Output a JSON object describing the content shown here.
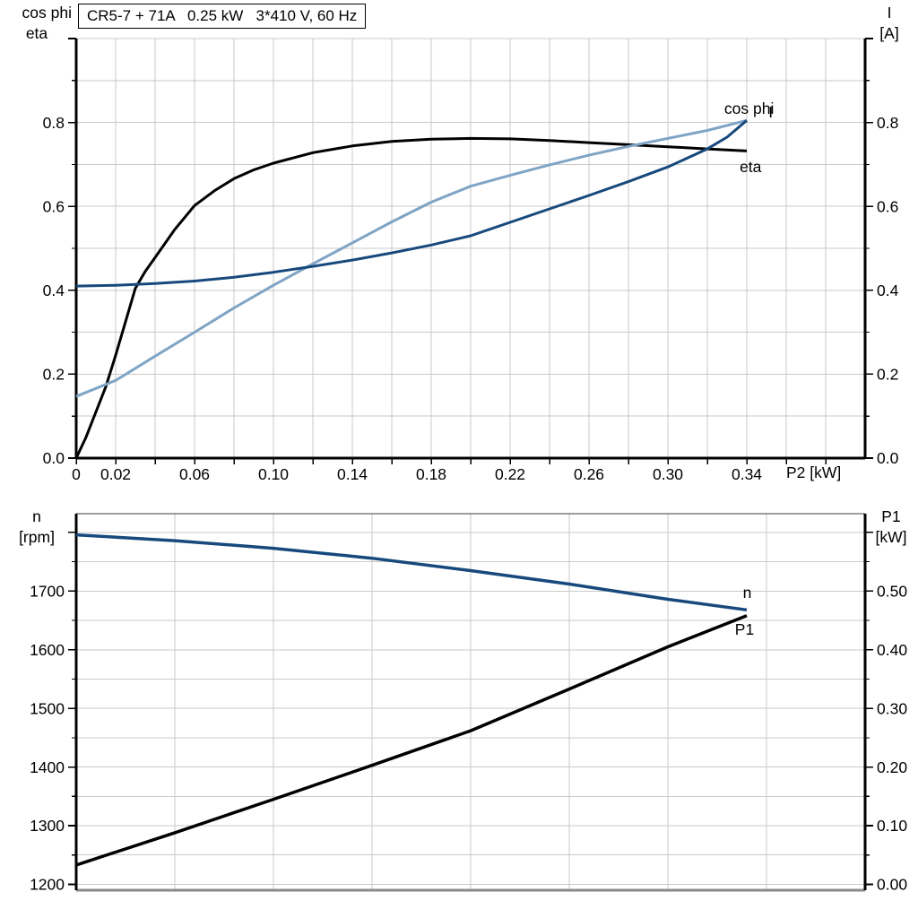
{
  "title_box": {
    "text": "CR5-7 + 71A   0.25 kW   3*410 V, 60 Hz"
  },
  "axis_headers": {
    "top_left": {
      "lines": [
        "cos phi",
        "eta"
      ]
    },
    "top_right": {
      "lines": [
        "I",
        "[A]"
      ]
    },
    "bottom_left": {
      "lines": [
        "n",
        "[rpm]"
      ]
    },
    "bottom_right": {
      "lines": [
        "P1",
        "[kW]"
      ]
    },
    "x_axis_title": "P2 [kW]"
  },
  "colors": {
    "black": "#000000",
    "dark_blue": "#17497c",
    "light_blue": "#7fa4c5",
    "grid": "#c9c9c9",
    "frame_dark": "#3c3c3c",
    "frame_gray": "#8a8a8a"
  },
  "chart_data": [
    {
      "id": "top",
      "type": "line",
      "title": "CR5-7 + 71A   0.25 kW   3*410 V, 60 Hz",
      "xlabel": "P2 [kW]",
      "ylabel_left": "cos phi / eta",
      "ylabel_right": "I [A]",
      "xlim": [
        0,
        0.4
      ],
      "grid": {
        "x_step": 0.02,
        "y_step": 0.1
      },
      "x_ticks": {
        "step": 0.02
      },
      "x_labeled_ticks": [
        {
          "v": 0,
          "t": "0"
        },
        {
          "v": 0.02,
          "t": "0.02"
        },
        {
          "v": 0.06,
          "t": "0.06"
        },
        {
          "v": 0.1,
          "t": "0.10"
        },
        {
          "v": 0.14,
          "t": "0.14"
        },
        {
          "v": 0.18,
          "t": "0.18"
        },
        {
          "v": 0.22,
          "t": "0.22"
        },
        {
          "v": 0.26,
          "t": "0.26"
        },
        {
          "v": 0.3,
          "t": "0.30"
        },
        {
          "v": 0.34,
          "t": "0.34"
        }
      ],
      "y_left": {
        "lim": [
          0,
          1.0
        ],
        "minor": 0.1,
        "major": 0.2,
        "labels": [
          {
            "v": 0.0,
            "t": "0.0"
          },
          {
            "v": 0.2,
            "t": "0.2"
          },
          {
            "v": 0.4,
            "t": "0.4"
          },
          {
            "v": 0.6,
            "t": "0.6"
          },
          {
            "v": 0.8,
            "t": "0.8"
          }
        ]
      },
      "y_right": {
        "lim": [
          0,
          1.0
        ],
        "minor": 0.1,
        "major": 0.2,
        "labels": [
          {
            "v": 0.0,
            "t": "0.0"
          },
          {
            "v": 0.2,
            "t": "0.2"
          },
          {
            "v": 0.4,
            "t": "0.4"
          },
          {
            "v": 0.6,
            "t": "0.6"
          },
          {
            "v": 0.8,
            "t": "0.8"
          }
        ]
      },
      "frame": {
        "top": "grid",
        "bottom_axis": true
      },
      "series": [
        {
          "name": "eta",
          "axis": "left",
          "color_key": "black",
          "width": 3,
          "points": [
            [
              0,
              0
            ],
            [
              0.005,
              0.05
            ],
            [
              0.01,
              0.11
            ],
            [
              0.015,
              0.17
            ],
            [
              0.02,
              0.245
            ],
            [
              0.025,
              0.325
            ],
            [
              0.03,
              0.405
            ],
            [
              0.035,
              0.445
            ],
            [
              0.04,
              0.478
            ],
            [
              0.05,
              0.545
            ],
            [
              0.06,
              0.602
            ],
            [
              0.07,
              0.637
            ],
            [
              0.08,
              0.666
            ],
            [
              0.09,
              0.687
            ],
            [
              0.1,
              0.703
            ],
            [
              0.12,
              0.728
            ],
            [
              0.14,
              0.744
            ],
            [
              0.16,
              0.755
            ],
            [
              0.18,
              0.76
            ],
            [
              0.2,
              0.762
            ],
            [
              0.22,
              0.761
            ],
            [
              0.24,
              0.757
            ],
            [
              0.26,
              0.752
            ],
            [
              0.28,
              0.747
            ],
            [
              0.3,
              0.742
            ],
            [
              0.32,
              0.737
            ],
            [
              0.34,
              0.732
            ]
          ],
          "end_label": {
            "text": "eta",
            "x": 0.3364,
            "y": 0.682
          }
        },
        {
          "name": "cos phi",
          "axis": "left",
          "color_key": "light_blue",
          "width": 3,
          "points": [
            [
              0,
              0.147
            ],
            [
              0.02,
              0.185
            ],
            [
              0.04,
              0.243
            ],
            [
              0.06,
              0.3
            ],
            [
              0.08,
              0.358
            ],
            [
              0.1,
              0.412
            ],
            [
              0.12,
              0.463
            ],
            [
              0.14,
              0.513
            ],
            [
              0.16,
              0.563
            ],
            [
              0.18,
              0.61
            ],
            [
              0.2,
              0.648
            ],
            [
              0.22,
              0.674
            ],
            [
              0.24,
              0.699
            ],
            [
              0.26,
              0.722
            ],
            [
              0.28,
              0.743
            ],
            [
              0.3,
              0.762
            ],
            [
              0.32,
              0.781
            ],
            [
              0.34,
              0.805
            ]
          ],
          "end_label": {
            "text": "cos phi",
            "x": 0.3286,
            "y": 0.82
          }
        },
        {
          "name": "I",
          "axis": "left",
          "color_key": "dark_blue",
          "width": 3,
          "points": [
            [
              0,
              0.41
            ],
            [
              0.02,
              0.412
            ],
            [
              0.04,
              0.416
            ],
            [
              0.06,
              0.422
            ],
            [
              0.08,
              0.431
            ],
            [
              0.1,
              0.443
            ],
            [
              0.12,
              0.457
            ],
            [
              0.14,
              0.472
            ],
            [
              0.16,
              0.489
            ],
            [
              0.18,
              0.508
            ],
            [
              0.2,
              0.53
            ],
            [
              0.22,
              0.562
            ],
            [
              0.24,
              0.594
            ],
            [
              0.26,
              0.626
            ],
            [
              0.28,
              0.659
            ],
            [
              0.3,
              0.694
            ],
            [
              0.32,
              0.737
            ],
            [
              0.33,
              0.765
            ],
            [
              0.34,
              0.805
            ]
          ],
          "end_label": {
            "text": "I",
            "x": 0.351,
            "y": 0.812
          }
        }
      ]
    },
    {
      "id": "bottom",
      "type": "line",
      "xlabel": "",
      "ylabel_left": "n [rpm]",
      "ylabel_right": "P1 [kW]",
      "xlim": [
        0,
        0.4
      ],
      "grid": {
        "x_step": 0.05,
        "y_step": 50
      },
      "x_labeled_ticks": [],
      "y_left": {
        "lim": [
          1190,
          1832
        ],
        "minor": 50,
        "major": 100,
        "labels": [
          {
            "v": 1200,
            "t": "1200"
          },
          {
            "v": 1300,
            "t": "1300"
          },
          {
            "v": 1400,
            "t": "1400"
          },
          {
            "v": 1500,
            "t": "1500"
          },
          {
            "v": 1600,
            "t": "1600"
          },
          {
            "v": 1700,
            "t": "1700"
          }
        ]
      },
      "y_right": {
        "lim": [
          -0.01,
          0.632
        ],
        "minor": 0.05,
        "major": 0.1,
        "labels": [
          {
            "v": 0.0,
            "t": "0.00"
          },
          {
            "v": 0.1,
            "t": "0.10"
          },
          {
            "v": 0.2,
            "t": "0.20"
          },
          {
            "v": 0.3,
            "t": "0.30"
          },
          {
            "v": 0.4,
            "t": "0.40"
          },
          {
            "v": 0.5,
            "t": "0.50"
          }
        ]
      },
      "frame": {
        "top": "frame_dark",
        "bottom": "frame_gray"
      },
      "series": [
        {
          "name": "n",
          "axis": "left",
          "color_key": "dark_blue",
          "width": 3.5,
          "points": [
            [
              0,
              1796
            ],
            [
              0.05,
              1786
            ],
            [
              0.1,
              1773
            ],
            [
              0.15,
              1756
            ],
            [
              0.2,
              1735
            ],
            [
              0.25,
              1712
            ],
            [
              0.3,
              1686
            ],
            [
              0.34,
              1668
            ]
          ],
          "end_label": {
            "text": "n",
            "x": 0.338,
            "y": 1688
          }
        },
        {
          "name": "P1",
          "axis": "right",
          "color_key": "black",
          "width": 3.5,
          "points": [
            [
              0,
              0.033
            ],
            [
              0.05,
              0.088
            ],
            [
              0.1,
              0.145
            ],
            [
              0.15,
              0.203
            ],
            [
              0.2,
              0.262
            ],
            [
              0.25,
              0.333
            ],
            [
              0.3,
              0.405
            ],
            [
              0.34,
              0.458
            ]
          ],
          "end_label": {
            "text": "P1",
            "x": 0.334,
            "y": 0.426
          }
        }
      ]
    }
  ]
}
